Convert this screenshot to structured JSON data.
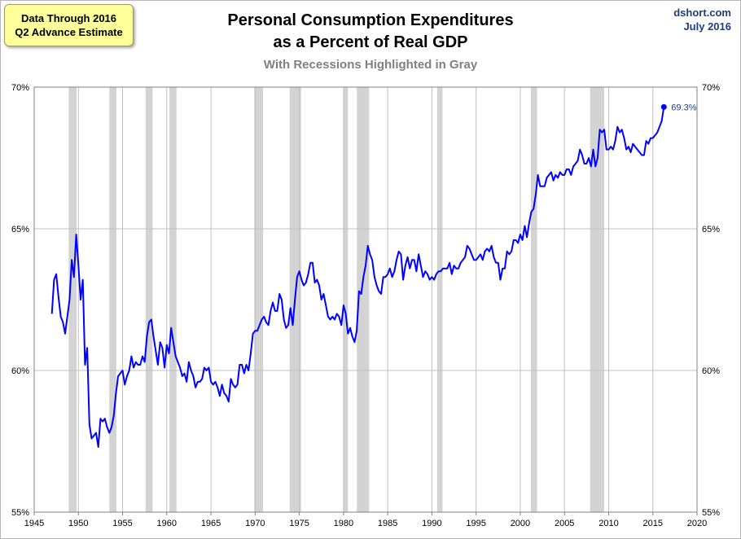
{
  "note": {
    "line1": "Data Through 2016",
    "line2": "Q2 Advance Estimate"
  },
  "title": {
    "line1": "Personal Consumption Expenditures",
    "line2": "as a Percent of Real GDP"
  },
  "subtitle": "With Recessions Highlighted in Gray",
  "source": {
    "site": "dshort.com",
    "date": "July 2016"
  },
  "colors": {
    "series": "#0000ff",
    "recession": "#d3d3d3",
    "grid": "#c0c0c0",
    "label": "#1f3d7a"
  },
  "chart_data": {
    "type": "line",
    "title": "Personal Consumption Expenditures as a Percent of Real GDP",
    "subtitle": "With Recessions Highlighted in Gray",
    "xlabel": "",
    "ylabel": "",
    "xlim": [
      1945,
      2020
    ],
    "ylim": [
      55,
      70
    ],
    "x_ticks": [
      "1945",
      "1950",
      "1955",
      "1960",
      "1965",
      "1970",
      "1975",
      "1980",
      "1985",
      "1990",
      "1995",
      "2000",
      "2005",
      "2010",
      "2015",
      "2020"
    ],
    "y_ticks_left": [
      "55%",
      "60%",
      "65%",
      "70%"
    ],
    "y_ticks_right": [
      "55%",
      "60%",
      "65%",
      "70%"
    ],
    "grid": true,
    "recessions": [
      [
        1948.9,
        1949.8
      ],
      [
        1953.5,
        1954.3
      ],
      [
        1957.6,
        1958.4
      ],
      [
        1960.3,
        1961.1
      ],
      [
        1969.9,
        1970.9
      ],
      [
        1973.9,
        1975.2
      ],
      [
        1980.0,
        1980.5
      ],
      [
        1981.5,
        1982.9
      ],
      [
        1990.6,
        1991.2
      ],
      [
        2001.2,
        2001.9
      ],
      [
        2007.9,
        2009.5
      ]
    ],
    "last_value_label": "69.3%",
    "series": [
      {
        "points": [
          [
            1947.0,
            62.0
          ],
          [
            1947.25,
            63.2
          ],
          [
            1947.5,
            63.4
          ],
          [
            1947.75,
            62.6
          ],
          [
            1948.0,
            61.9
          ],
          [
            1948.25,
            61.7
          ],
          [
            1948.5,
            61.3
          ],
          [
            1948.75,
            61.9
          ],
          [
            1949.0,
            62.5
          ],
          [
            1949.25,
            63.9
          ],
          [
            1949.5,
            63.3
          ],
          [
            1949.75,
            64.8
          ],
          [
            1950.0,
            63.7
          ],
          [
            1950.25,
            62.5
          ],
          [
            1950.5,
            63.2
          ],
          [
            1950.75,
            60.2
          ],
          [
            1951.0,
            60.8
          ],
          [
            1951.25,
            58.1
          ],
          [
            1951.5,
            57.6
          ],
          [
            1951.75,
            57.7
          ],
          [
            1952.0,
            57.8
          ],
          [
            1952.25,
            57.3
          ],
          [
            1952.5,
            58.3
          ],
          [
            1952.75,
            58.2
          ],
          [
            1953.0,
            58.3
          ],
          [
            1953.25,
            58.0
          ],
          [
            1953.5,
            57.8
          ],
          [
            1953.75,
            58.0
          ],
          [
            1954.0,
            58.4
          ],
          [
            1954.25,
            59.2
          ],
          [
            1954.5,
            59.8
          ],
          [
            1954.75,
            59.9
          ],
          [
            1955.0,
            60.0
          ],
          [
            1955.25,
            59.5
          ],
          [
            1955.5,
            59.8
          ],
          [
            1955.75,
            60.0
          ],
          [
            1956.0,
            60.5
          ],
          [
            1956.25,
            60.1
          ],
          [
            1956.5,
            60.3
          ],
          [
            1956.75,
            60.2
          ],
          [
            1957.0,
            60.2
          ],
          [
            1957.25,
            60.5
          ],
          [
            1957.5,
            60.3
          ],
          [
            1957.75,
            61.2
          ],
          [
            1958.0,
            61.7
          ],
          [
            1958.25,
            61.8
          ],
          [
            1958.5,
            61.2
          ],
          [
            1958.75,
            60.7
          ],
          [
            1959.0,
            60.2
          ],
          [
            1959.25,
            61.0
          ],
          [
            1959.5,
            60.8
          ],
          [
            1959.75,
            60.1
          ],
          [
            1960.0,
            60.9
          ],
          [
            1960.25,
            60.6
          ],
          [
            1960.5,
            61.5
          ],
          [
            1960.75,
            61.0
          ],
          [
            1961.0,
            60.5
          ],
          [
            1961.25,
            60.3
          ],
          [
            1961.5,
            60.1
          ],
          [
            1961.75,
            59.8
          ],
          [
            1962.0,
            59.9
          ],
          [
            1962.25,
            59.6
          ],
          [
            1962.5,
            60.3
          ],
          [
            1962.75,
            60.0
          ],
          [
            1963.0,
            59.8
          ],
          [
            1963.25,
            59.4
          ],
          [
            1963.5,
            59.6
          ],
          [
            1963.75,
            59.6
          ],
          [
            1964.0,
            59.7
          ],
          [
            1964.25,
            60.1
          ],
          [
            1964.5,
            60.0
          ],
          [
            1964.75,
            60.1
          ],
          [
            1965.0,
            59.6
          ],
          [
            1965.25,
            59.5
          ],
          [
            1965.5,
            59.6
          ],
          [
            1965.75,
            59.4
          ],
          [
            1966.0,
            59.1
          ],
          [
            1966.25,
            59.5
          ],
          [
            1966.5,
            59.2
          ],
          [
            1966.75,
            59.1
          ],
          [
            1967.0,
            58.9
          ],
          [
            1967.25,
            59.7
          ],
          [
            1967.5,
            59.5
          ],
          [
            1967.75,
            59.4
          ],
          [
            1968.0,
            59.5
          ],
          [
            1968.25,
            60.2
          ],
          [
            1968.5,
            60.2
          ],
          [
            1968.75,
            59.9
          ],
          [
            1969.0,
            60.2
          ],
          [
            1969.25,
            60.0
          ],
          [
            1969.5,
            60.6
          ],
          [
            1969.75,
            61.3
          ],
          [
            1970.0,
            61.4
          ],
          [
            1970.25,
            61.4
          ],
          [
            1970.5,
            61.6
          ],
          [
            1970.75,
            61.8
          ],
          [
            1971.0,
            61.9
          ],
          [
            1971.25,
            61.7
          ],
          [
            1971.5,
            61.6
          ],
          [
            1971.75,
            62.1
          ],
          [
            1972.0,
            62.4
          ],
          [
            1972.25,
            62.1
          ],
          [
            1972.5,
            62.1
          ],
          [
            1972.75,
            62.7
          ],
          [
            1973.0,
            62.5
          ],
          [
            1973.25,
            61.8
          ],
          [
            1973.5,
            61.5
          ],
          [
            1973.75,
            61.6
          ],
          [
            1974.0,
            62.2
          ],
          [
            1974.25,
            61.6
          ],
          [
            1974.5,
            62.5
          ],
          [
            1974.75,
            63.3
          ],
          [
            1975.0,
            63.5
          ],
          [
            1975.25,
            63.2
          ],
          [
            1975.5,
            63.0
          ],
          [
            1975.75,
            63.1
          ],
          [
            1976.0,
            63.4
          ],
          [
            1976.25,
            63.8
          ],
          [
            1976.5,
            63.8
          ],
          [
            1976.75,
            63.1
          ],
          [
            1977.0,
            63.2
          ],
          [
            1977.25,
            63.0
          ],
          [
            1977.5,
            62.5
          ],
          [
            1977.75,
            62.7
          ],
          [
            1978.0,
            62.3
          ],
          [
            1978.25,
            61.9
          ],
          [
            1978.5,
            61.8
          ],
          [
            1978.75,
            61.9
          ],
          [
            1979.0,
            61.8
          ],
          [
            1979.25,
            62.0
          ],
          [
            1979.5,
            61.9
          ],
          [
            1979.75,
            61.6
          ],
          [
            1980.0,
            62.3
          ],
          [
            1980.25,
            62.0
          ],
          [
            1980.5,
            61.3
          ],
          [
            1980.75,
            61.5
          ],
          [
            1981.0,
            61.2
          ],
          [
            1981.25,
            61.0
          ],
          [
            1981.5,
            61.4
          ],
          [
            1981.75,
            62.8
          ],
          [
            1982.0,
            62.7
          ],
          [
            1982.25,
            63.3
          ],
          [
            1982.5,
            63.7
          ],
          [
            1982.75,
            64.4
          ],
          [
            1983.0,
            64.1
          ],
          [
            1983.25,
            63.9
          ],
          [
            1983.5,
            63.3
          ],
          [
            1983.75,
            63.0
          ],
          [
            1984.0,
            62.8
          ],
          [
            1984.25,
            62.7
          ],
          [
            1984.5,
            63.3
          ],
          [
            1984.75,
            63.3
          ],
          [
            1985.0,
            63.4
          ],
          [
            1985.25,
            63.6
          ],
          [
            1985.5,
            63.3
          ],
          [
            1985.75,
            63.5
          ],
          [
            1986.0,
            63.9
          ],
          [
            1986.25,
            64.2
          ],
          [
            1986.5,
            64.1
          ],
          [
            1986.75,
            63.2
          ],
          [
            1987.0,
            63.7
          ],
          [
            1987.25,
            64.0
          ],
          [
            1987.5,
            63.6
          ],
          [
            1987.75,
            63.9
          ],
          [
            1988.0,
            63.9
          ],
          [
            1988.25,
            63.5
          ],
          [
            1988.5,
            64.1
          ],
          [
            1988.75,
            63.7
          ],
          [
            1989.0,
            63.3
          ],
          [
            1989.25,
            63.5
          ],
          [
            1989.5,
            63.4
          ],
          [
            1989.75,
            63.2
          ],
          [
            1990.0,
            63.3
          ],
          [
            1990.25,
            63.2
          ],
          [
            1990.5,
            63.4
          ],
          [
            1990.75,
            63.5
          ],
          [
            1991.0,
            63.5
          ],
          [
            1991.25,
            63.6
          ],
          [
            1991.5,
            63.6
          ],
          [
            1991.75,
            63.6
          ],
          [
            1992.0,
            63.8
          ],
          [
            1992.25,
            63.4
          ],
          [
            1992.5,
            63.7
          ],
          [
            1992.75,
            63.6
          ],
          [
            1993.0,
            63.6
          ],
          [
            1993.25,
            63.8
          ],
          [
            1993.5,
            63.9
          ],
          [
            1993.75,
            64.0
          ],
          [
            1994.0,
            64.4
          ],
          [
            1994.25,
            64.3
          ],
          [
            1994.5,
            64.1
          ],
          [
            1994.75,
            63.9
          ],
          [
            1995.0,
            63.9
          ],
          [
            1995.25,
            64.0
          ],
          [
            1995.5,
            64.1
          ],
          [
            1995.75,
            63.9
          ],
          [
            1996.0,
            64.2
          ],
          [
            1996.25,
            64.3
          ],
          [
            1996.5,
            64.2
          ],
          [
            1996.75,
            64.4
          ],
          [
            1997.0,
            64.0
          ],
          [
            1997.25,
            63.8
          ],
          [
            1997.5,
            63.8
          ],
          [
            1997.75,
            63.2
          ],
          [
            1998.0,
            63.6
          ],
          [
            1998.25,
            63.6
          ],
          [
            1998.5,
            64.2
          ],
          [
            1998.75,
            64.1
          ],
          [
            1999.0,
            64.2
          ],
          [
            1999.25,
            64.6
          ],
          [
            1999.5,
            64.6
          ],
          [
            1999.75,
            64.5
          ],
          [
            2000.0,
            64.8
          ],
          [
            2000.25,
            64.6
          ],
          [
            2000.5,
            65.1
          ],
          [
            2000.75,
            64.7
          ],
          [
            2001.0,
            65.2
          ],
          [
            2001.25,
            65.6
          ],
          [
            2001.5,
            65.7
          ],
          [
            2001.75,
            66.2
          ],
          [
            2002.0,
            66.9
          ],
          [
            2002.25,
            66.5
          ],
          [
            2002.5,
            66.5
          ],
          [
            2002.75,
            66.5
          ],
          [
            2003.0,
            66.8
          ],
          [
            2003.25,
            66.9
          ],
          [
            2003.5,
            67.0
          ],
          [
            2003.75,
            66.7
          ],
          [
            2004.0,
            66.9
          ],
          [
            2004.25,
            66.8
          ],
          [
            2004.5,
            67.0
          ],
          [
            2004.75,
            66.9
          ],
          [
            2005.0,
            66.9
          ],
          [
            2005.25,
            67.1
          ],
          [
            2005.5,
            67.1
          ],
          [
            2005.75,
            66.9
          ],
          [
            2006.0,
            67.2
          ],
          [
            2006.25,
            67.3
          ],
          [
            2006.5,
            67.4
          ],
          [
            2006.75,
            67.8
          ],
          [
            2007.0,
            67.6
          ],
          [
            2007.25,
            67.3
          ],
          [
            2007.5,
            67.3
          ],
          [
            2007.75,
            67.5
          ],
          [
            2008.0,
            67.2
          ],
          [
            2008.25,
            67.8
          ],
          [
            2008.5,
            67.2
          ],
          [
            2008.75,
            67.5
          ],
          [
            2009.0,
            68.5
          ],
          [
            2009.25,
            68.4
          ],
          [
            2009.5,
            68.5
          ],
          [
            2009.75,
            67.8
          ],
          [
            2010.0,
            67.8
          ],
          [
            2010.25,
            67.9
          ],
          [
            2010.5,
            67.8
          ],
          [
            2010.75,
            68.1
          ],
          [
            2011.0,
            68.6
          ],
          [
            2011.25,
            68.4
          ],
          [
            2011.5,
            68.5
          ],
          [
            2011.75,
            68.2
          ],
          [
            2012.0,
            67.8
          ],
          [
            2012.25,
            67.9
          ],
          [
            2012.5,
            67.7
          ],
          [
            2012.75,
            68.0
          ],
          [
            2013.0,
            67.9
          ],
          [
            2013.25,
            67.8
          ],
          [
            2013.5,
            67.7
          ],
          [
            2013.75,
            67.6
          ],
          [
            2014.0,
            67.6
          ],
          [
            2014.25,
            68.1
          ],
          [
            2014.5,
            68.0
          ],
          [
            2014.75,
            68.2
          ],
          [
            2015.0,
            68.2
          ],
          [
            2015.25,
            68.3
          ],
          [
            2015.5,
            68.4
          ],
          [
            2015.75,
            68.6
          ],
          [
            2016.0,
            68.8
          ],
          [
            2016.25,
            69.3
          ]
        ]
      }
    ]
  }
}
